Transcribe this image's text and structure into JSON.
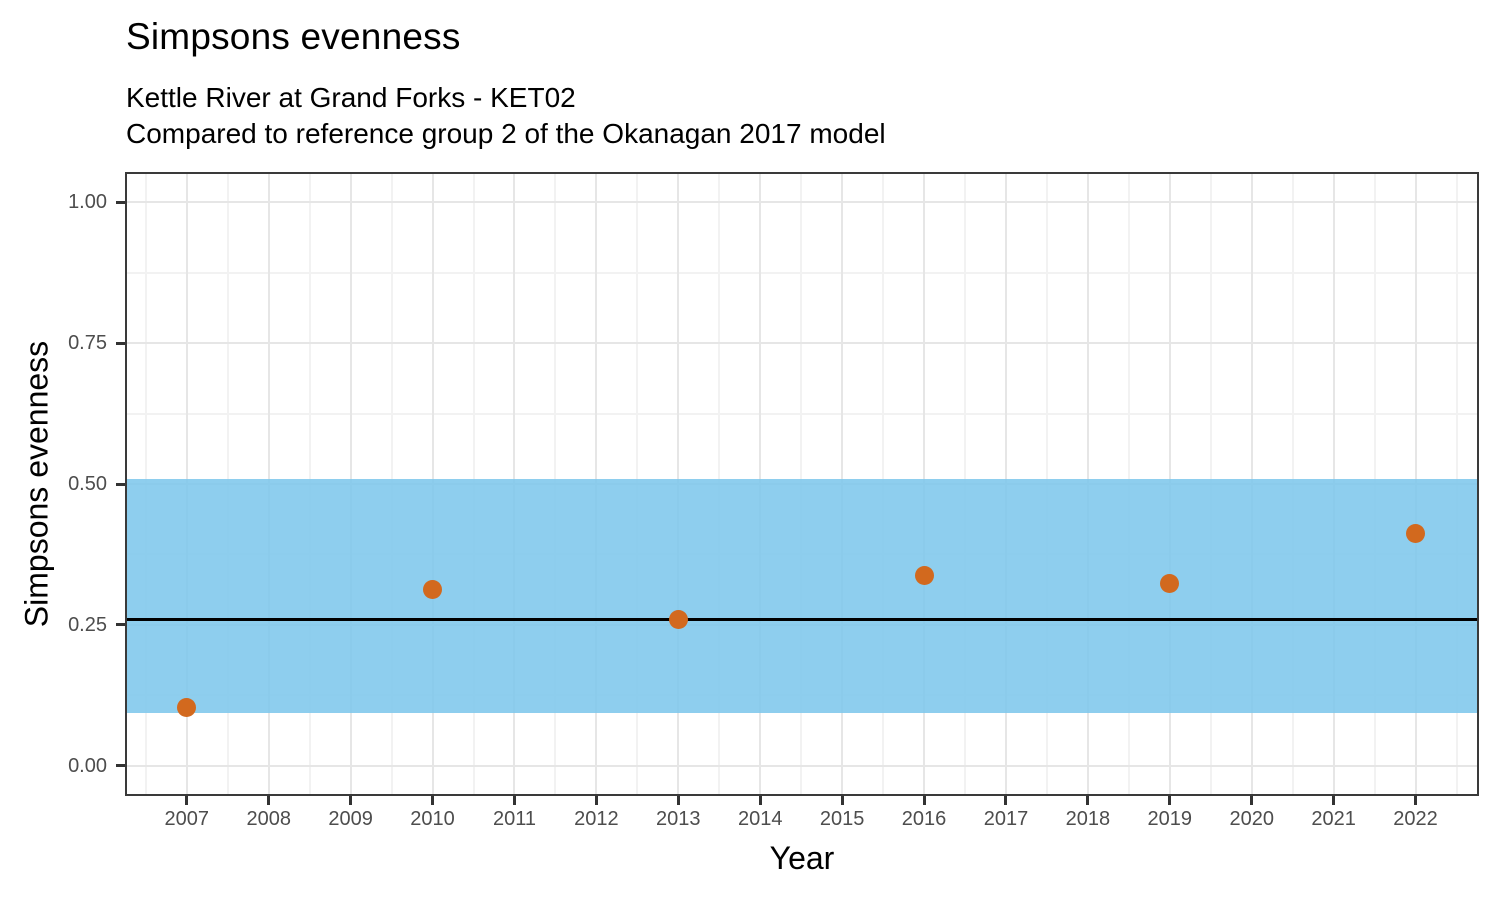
{
  "figure": {
    "title": "Simpsons evenness",
    "subtitle_line1": "Kettle River at Grand Forks - KET02",
    "subtitle_line2": "Compared to reference group 2 of the Okanagan 2017 model"
  },
  "chart_data": {
    "type": "scatter",
    "title": "Simpsons evenness",
    "subtitle": [
      "Kettle River at Grand Forks - KET02",
      "Compared to reference group 2 of the Okanagan 2017 model"
    ],
    "xlabel": "Year",
    "ylabel": "Simpsons evenness",
    "xlim": [
      2006.27,
      2022.75
    ],
    "ylim": [
      -0.05,
      1.05
    ],
    "grid": true,
    "legend": false,
    "x_ticks": [
      {
        "value": 2007,
        "label": "2007"
      },
      {
        "value": 2008,
        "label": "2008"
      },
      {
        "value": 2009,
        "label": "2009"
      },
      {
        "value": 2010,
        "label": "2010"
      },
      {
        "value": 2011,
        "label": "2011"
      },
      {
        "value": 2012,
        "label": "2012"
      },
      {
        "value": 2013,
        "label": "2013"
      },
      {
        "value": 2014,
        "label": "2014"
      },
      {
        "value": 2015,
        "label": "2015"
      },
      {
        "value": 2016,
        "label": "2016"
      },
      {
        "value": 2017,
        "label": "2017"
      },
      {
        "value": 2018,
        "label": "2018"
      },
      {
        "value": 2019,
        "label": "2019"
      },
      {
        "value": 2020,
        "label": "2020"
      },
      {
        "value": 2021,
        "label": "2021"
      },
      {
        "value": 2022,
        "label": "2022"
      }
    ],
    "x_minor_ticks": [
      2006.5,
      2007.5,
      2008.5,
      2009.5,
      2010.5,
      2011.5,
      2012.5,
      2013.5,
      2014.5,
      2015.5,
      2016.5,
      2017.5,
      2018.5,
      2019.5,
      2020.5,
      2021.5,
      2022.5
    ],
    "y_ticks": [
      {
        "value": 0.0,
        "label": "0.00"
      },
      {
        "value": 0.25,
        "label": "0.25"
      },
      {
        "value": 0.5,
        "label": "0.50"
      },
      {
        "value": 0.75,
        "label": "0.75"
      },
      {
        "value": 1.0,
        "label": "1.00"
      }
    ],
    "y_minor_ticks": [
      0.125,
      0.375,
      0.625,
      0.875
    ],
    "series": [
      {
        "name": "Simpsons evenness",
        "points": [
          {
            "x": 2007,
            "y": 0.104
          },
          {
            "x": 2010,
            "y": 0.312
          },
          {
            "x": 2013,
            "y": 0.259
          },
          {
            "x": 2016,
            "y": 0.337
          },
          {
            "x": 2019,
            "y": 0.324
          },
          {
            "x": 2022,
            "y": 0.413
          }
        ]
      }
    ],
    "reference_band": {
      "ymin": 0.094,
      "ymax": 0.509
    },
    "reference_line": {
      "y": 0.26
    }
  },
  "colors": {
    "point": "#D2691E",
    "band_rgba": "rgba(125, 199, 235, 0.87)",
    "reference_line": "#000000",
    "panel_border": "#3A3A3A",
    "grid_major": "#E6E6E6",
    "grid_minor": "#F2F2F2",
    "tick": "#333333",
    "tick_label": "#4D4D4D"
  }
}
